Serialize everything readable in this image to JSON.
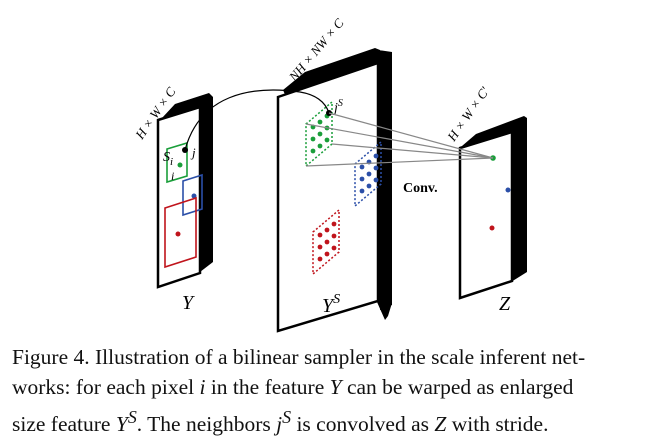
{
  "figure": {
    "y_dims": "H × W × C",
    "ys_dims": "NH × NW × C",
    "z_dims": "H × W × C′",
    "label_y": "Y",
    "label_ys_base": "Y",
    "label_ys_sup": "S",
    "label_z": "Z",
    "label_si_base": "S",
    "label_si_sub": "i",
    "label_i": "i",
    "label_j": "j",
    "label_js_base": "j",
    "label_js_sup": "S",
    "conv_label": "Conv.",
    "colors": {
      "green": "#1a9e3a",
      "blue": "#2b4fa8",
      "red": "#c0141c",
      "black": "#000000",
      "gray": "#888888"
    }
  },
  "caption": {
    "line1": "Figure 4. Illustration of a bilinear sampler in the scale inferent net-",
    "line2_a": "works: for each pixel ",
    "line2_i": "i",
    "line2_b": " in the feature ",
    "line2_y": "Y",
    "line2_c": " can be warped as enlarged",
    "line3_a": "size feature ",
    "line3_ys": "Y",
    "line3_sup": "S",
    "line3_b": ". The neighbors ",
    "line3_j": "j",
    "line3_jsup": "S",
    "line3_c": " is convolved as ",
    "line3_z": "Z",
    "line3_d": " with stride."
  }
}
